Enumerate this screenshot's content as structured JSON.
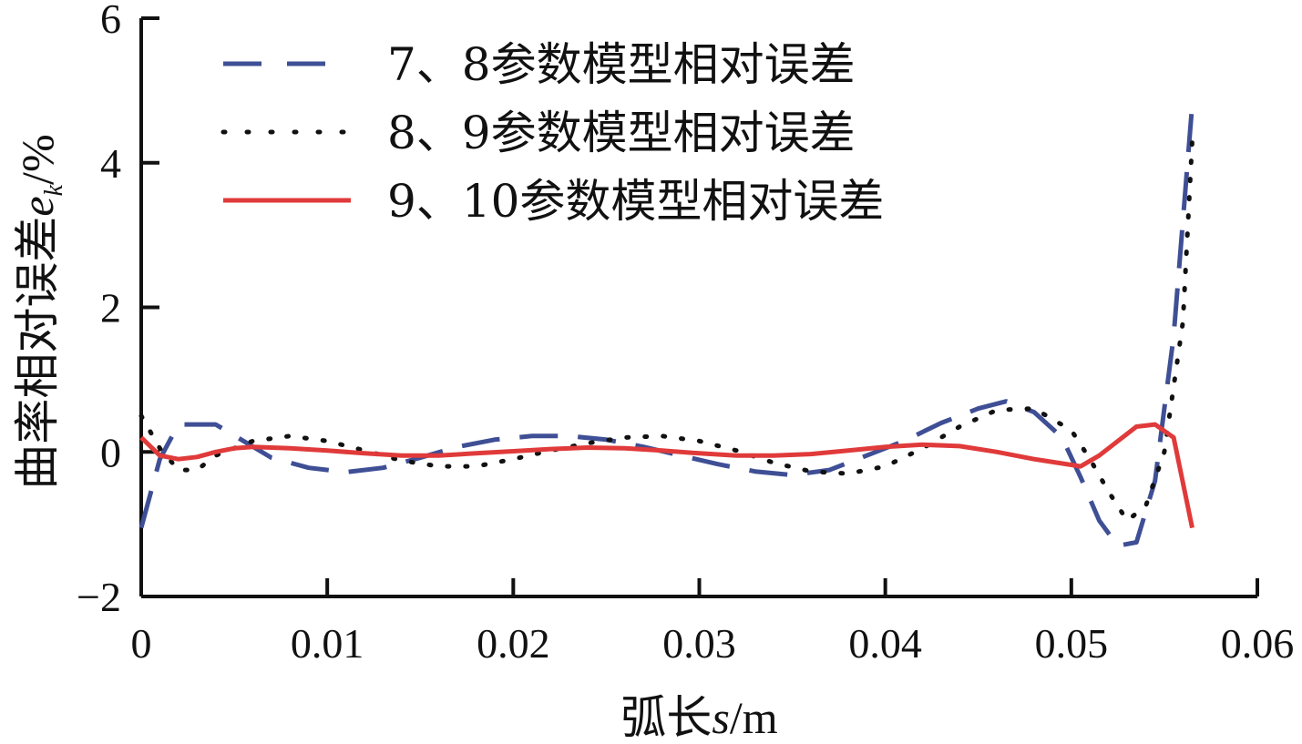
{
  "chart_data": {
    "type": "line",
    "xlabel": {
      "prefix": "弧长",
      "var": "s",
      "unit": "/m"
    },
    "ylabel": {
      "prefix": "曲率相对误差",
      "var": "e",
      "sub": "k",
      "unit": "/%"
    },
    "xlim": [
      0,
      0.06
    ],
    "ylim": [
      -2,
      6
    ],
    "x_ticks": [
      0,
      0.01,
      0.02,
      0.03,
      0.04,
      0.05,
      0.06
    ],
    "x_tick_labels": [
      "0",
      "0.01",
      "0.02",
      "0.03",
      "0.04",
      "0.05",
      "0.06"
    ],
    "y_ticks": [
      -2,
      0,
      2,
      4,
      6
    ],
    "y_tick_labels": [
      "−2",
      "0",
      "2",
      "4",
      "6"
    ],
    "grid": false,
    "legend_position": "top-left",
    "series": [
      {
        "name": "7、8参数模型相对误差",
        "style": "dashed",
        "color": "#3f4f95",
        "x": [
          0,
          0.001,
          0.002,
          0.004,
          0.0055,
          0.007,
          0.009,
          0.011,
          0.013,
          0.015,
          0.017,
          0.019,
          0.021,
          0.023,
          0.025,
          0.027,
          0.029,
          0.031,
          0.033,
          0.035,
          0.037,
          0.039,
          0.041,
          0.043,
          0.045,
          0.0465,
          0.048,
          0.0495,
          0.0505,
          0.0515,
          0.0525,
          0.0535,
          0.0545,
          0.0555,
          0.0565
        ],
        "y": [
          -1.05,
          -0.1,
          0.38,
          0.38,
          0.15,
          -0.08,
          -0.22,
          -0.28,
          -0.22,
          -0.08,
          0.07,
          0.17,
          0.22,
          0.22,
          0.17,
          0.07,
          -0.05,
          -0.17,
          -0.27,
          -0.32,
          -0.25,
          -0.05,
          0.15,
          0.4,
          0.6,
          0.7,
          0.55,
          0.2,
          -0.35,
          -0.95,
          -1.3,
          -1.25,
          -0.4,
          1.6,
          4.8
        ]
      },
      {
        "name": "8、9参数模型相对误差",
        "style": "dotted",
        "color": "#111111",
        "x": [
          0,
          0.001,
          0.002,
          0.003,
          0.004,
          0.006,
          0.008,
          0.01,
          0.012,
          0.014,
          0.016,
          0.018,
          0.02,
          0.022,
          0.024,
          0.026,
          0.028,
          0.03,
          0.032,
          0.034,
          0.036,
          0.038,
          0.04,
          0.042,
          0.044,
          0.046,
          0.048,
          0.05,
          0.051,
          0.052,
          0.053,
          0.054,
          0.055,
          0.056,
          0.0565
        ],
        "y": [
          0.5,
          0.05,
          -0.25,
          -0.25,
          -0.05,
          0.15,
          0.22,
          0.15,
          0.02,
          -0.12,
          -0.2,
          -0.2,
          -0.1,
          0.02,
          0.12,
          0.2,
          0.22,
          0.15,
          0.02,
          -0.15,
          -0.27,
          -0.3,
          -0.2,
          0.05,
          0.35,
          0.58,
          0.6,
          0.3,
          -0.1,
          -0.55,
          -0.95,
          -0.75,
          0.0,
          1.8,
          4.3
        ]
      },
      {
        "name": "9、10参数模型相对误差",
        "style": "solid",
        "color": "#e03a3a",
        "x": [
          0,
          0.001,
          0.002,
          0.003,
          0.004,
          0.005,
          0.006,
          0.008,
          0.01,
          0.012,
          0.014,
          0.016,
          0.018,
          0.02,
          0.022,
          0.024,
          0.026,
          0.028,
          0.03,
          0.032,
          0.034,
          0.036,
          0.038,
          0.04,
          0.042,
          0.044,
          0.046,
          0.048,
          0.05,
          0.0505,
          0.0515,
          0.0525,
          0.0535,
          0.0545,
          0.0555,
          0.0565
        ],
        "y": [
          0.2,
          -0.05,
          -0.1,
          -0.07,
          0.0,
          0.05,
          0.07,
          0.05,
          0.02,
          -0.02,
          -0.05,
          -0.05,
          -0.02,
          0.01,
          0.04,
          0.06,
          0.05,
          0.02,
          -0.02,
          -0.05,
          -0.05,
          -0.03,
          0.02,
          0.07,
          0.1,
          0.08,
          0.0,
          -0.1,
          -0.18,
          -0.2,
          -0.05,
          0.15,
          0.35,
          0.38,
          0.2,
          -1.05
        ]
      }
    ]
  }
}
